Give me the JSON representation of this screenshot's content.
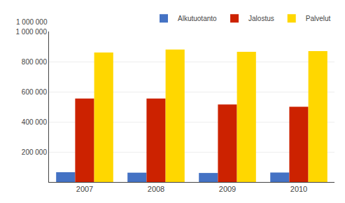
{
  "chart_data": {
    "type": "bar",
    "categories": [
      "2007",
      "2008",
      "2009",
      "2010"
    ],
    "series": [
      {
        "name": "Alkutuotanto",
        "color": "#4472C4",
        "values": [
          65000,
          62000,
          60000,
          63000
        ]
      },
      {
        "name": "Jalostus",
        "color": "#CC2200",
        "values": [
          555000,
          555000,
          515000,
          500000
        ]
      },
      {
        "name": "Palvelut",
        "color": "#FFD700",
        "values": [
          860000,
          880000,
          865000,
          870000
        ]
      }
    ],
    "ylim": [
      0,
      1000000
    ],
    "yticks": [
      {
        "value": 200000,
        "label": "200 000"
      },
      {
        "value": 400000,
        "label": "400 000"
      },
      {
        "value": 600000,
        "label": "600 000"
      },
      {
        "value": 800000,
        "label": "800 000"
      },
      {
        "value": 1000000,
        "label": "1 000 000"
      }
    ],
    "annotations": [
      "1 000 000"
    ],
    "grid": true,
    "legend": "upper right"
  }
}
